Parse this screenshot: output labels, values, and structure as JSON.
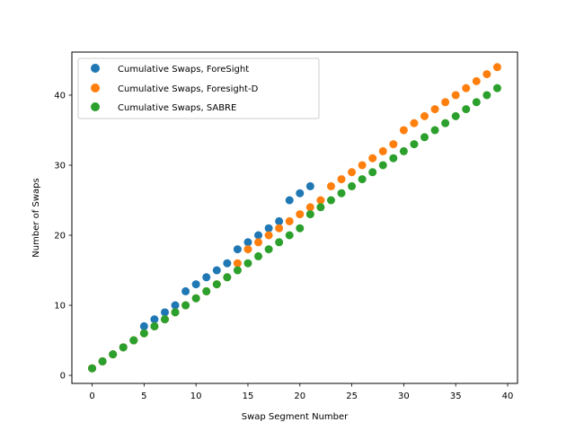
{
  "chart_data": {
    "type": "scatter",
    "title": "",
    "xlabel": "Swap Segment Number",
    "ylabel": "Number of Swaps",
    "xlim": [
      -1.95,
      40.95
    ],
    "ylim": [
      -1.15,
      46.15
    ],
    "xticks": [
      0,
      5,
      10,
      15,
      20,
      25,
      30,
      35,
      40
    ],
    "yticks": [
      0,
      10,
      20,
      30,
      40
    ],
    "legend_position": "top-left",
    "grid": false,
    "series": [
      {
        "name": "Cumulative Swaps, ForeSight",
        "color": "#1f77b4",
        "x": [
          0,
          1,
          2,
          3,
          4,
          5,
          6,
          7,
          8,
          9,
          10,
          11,
          12,
          13,
          14,
          15,
          16,
          17,
          18,
          19,
          20,
          21
        ],
        "y": [
          1,
          2,
          3,
          4,
          5,
          7,
          8,
          9,
          10,
          12,
          13,
          14,
          15,
          16,
          18,
          19,
          20,
          21,
          22,
          25,
          26,
          27
        ]
      },
      {
        "name": "Cumulative Swaps, Foresight-D",
        "color": "#ff7f0e",
        "x": [
          0,
          1,
          2,
          3,
          4,
          5,
          6,
          7,
          8,
          9,
          10,
          11,
          12,
          13,
          14,
          15,
          16,
          17,
          18,
          19,
          20,
          21,
          22,
          23,
          24,
          25,
          26,
          27,
          28,
          29,
          30,
          31,
          32,
          33,
          34,
          35,
          36,
          37,
          38,
          39
        ],
        "y": [
          1,
          2,
          3,
          4,
          5,
          6,
          7,
          8,
          9,
          10,
          11,
          12,
          13,
          14,
          16,
          18,
          19,
          20,
          21,
          22,
          23,
          24,
          25,
          27,
          28,
          29,
          30,
          31,
          32,
          33,
          35,
          36,
          37,
          38,
          39,
          40,
          41,
          42,
          43,
          44
        ]
      },
      {
        "name": "Cumulative Swaps, SABRE",
        "color": "#2ca02c",
        "x": [
          0,
          1,
          2,
          3,
          4,
          5,
          6,
          7,
          8,
          9,
          10,
          11,
          12,
          13,
          14,
          15,
          16,
          17,
          18,
          19,
          20,
          21,
          22,
          23,
          24,
          25,
          26,
          27,
          28,
          29,
          30,
          31,
          32,
          33,
          34,
          35,
          36,
          37,
          38,
          39
        ],
        "y": [
          1,
          2,
          3,
          4,
          5,
          6,
          7,
          8,
          9,
          10,
          11,
          12,
          13,
          14,
          15,
          16,
          17,
          18,
          19,
          20,
          21,
          23,
          24,
          25,
          26,
          27,
          28,
          29,
          30,
          31,
          32,
          33,
          34,
          35,
          36,
          37,
          38,
          39,
          40,
          41
        ]
      }
    ]
  }
}
